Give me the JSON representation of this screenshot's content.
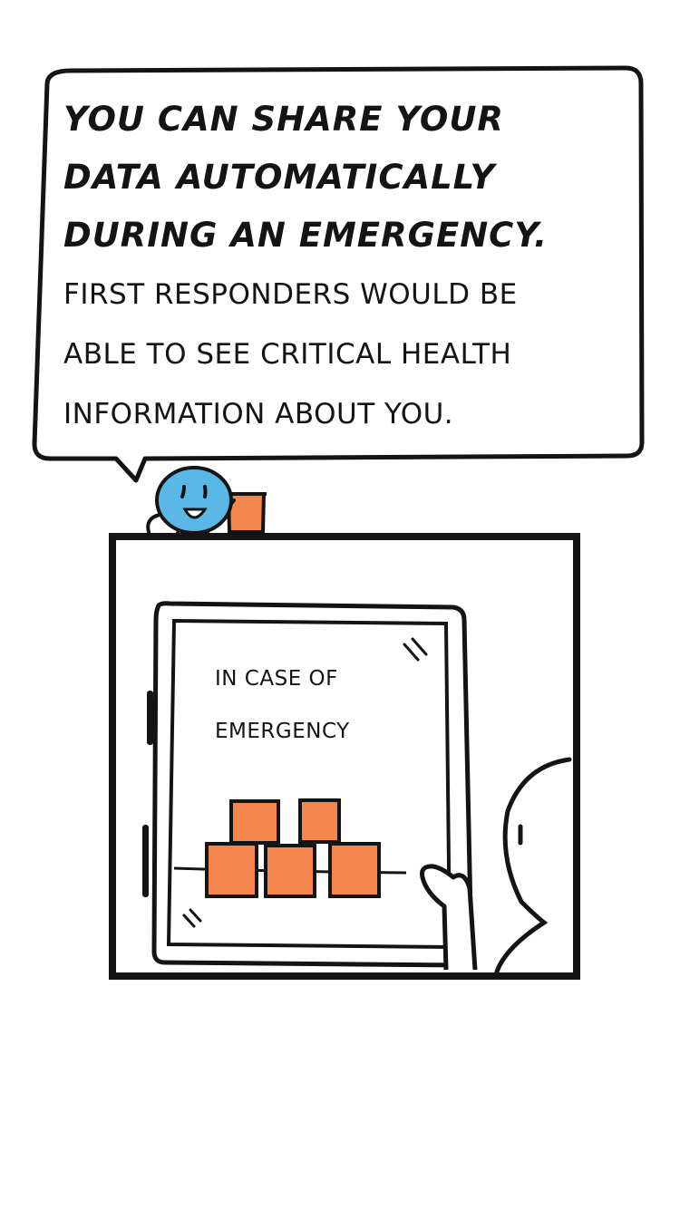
{
  "speech_bubble": {
    "headline_lines": [
      "YOU CAN SHARE YOUR",
      "DATA AUTOMATICALLY",
      "DURING AN EMERGENCY."
    ],
    "body_lines": [
      "FIRST RESPONDERS WOULD BE",
      "ABLE TO SEE CRITICAL HEALTH",
      "INFORMATION ABOUT YOU."
    ]
  },
  "tablet_screen": {
    "lines": [
      "IN CASE OF",
      "EMERGENCY"
    ]
  },
  "colors": {
    "ink": "#141414",
    "mascot_blue": "#5bb8e6",
    "accent_orange": "#f5864e",
    "background": "#ffffff"
  }
}
